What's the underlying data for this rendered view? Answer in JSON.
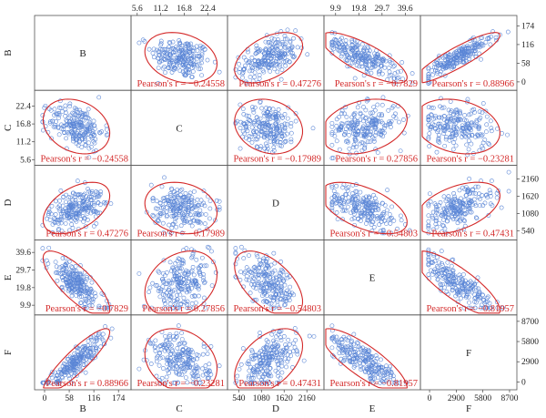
{
  "chart_data": {
    "type": "scatter-matrix",
    "variables": [
      "B",
      "C",
      "D",
      "E",
      "F"
    ],
    "axes": {
      "B": {
        "ticks": [
          "0",
          "58",
          "116",
          "174"
        ],
        "tick_values": [
          0,
          58,
          116,
          174
        ],
        "range": [
          -15,
          195
        ]
      },
      "C": {
        "ticks": [
          "5.6",
          "11.2",
          "16.8",
          "22.4"
        ],
        "tick_values": [
          5.6,
          11.2,
          16.8,
          22.4
        ],
        "range": [
          5.0,
          26.2
        ]
      },
      "D": {
        "ticks": [
          "540",
          "1080",
          "1620",
          "2160"
        ],
        "tick_values": [
          540,
          1080,
          1620,
          2160
        ],
        "range": [
          360,
          2480
        ]
      },
      "E": {
        "ticks": [
          "9.9",
          "19.8",
          "29.7",
          "39.6"
        ],
        "tick_values": [
          9.9,
          19.8,
          29.7,
          39.6
        ],
        "range": [
          6.5,
          44.5
        ]
      },
      "F": {
        "ticks": [
          "0",
          "2900",
          "5800",
          "8700"
        ],
        "tick_values": [
          0,
          2900,
          5800,
          8700
        ],
        "range": [
          -600,
          9100
        ]
      }
    },
    "variable_means": {
      "B": 75,
      "C": 16.0,
      "D": 1250,
      "E": 22,
      "F": 3000
    },
    "variable_sds": {
      "B": 32,
      "C": 3.5,
      "D": 330,
      "E": 7.5,
      "F": 1900
    },
    "correlations": [
      {
        "row": "B",
        "col": "C",
        "r": -0.24558,
        "label": "Pearson's r = −0.24558"
      },
      {
        "row": "B",
        "col": "D",
        "r": 0.47276,
        "label": "Pearson's r = 0.47276"
      },
      {
        "row": "B",
        "col": "E",
        "r": -0.7829,
        "label": "Pearson's r = −0.7829"
      },
      {
        "row": "B",
        "col": "F",
        "r": 0.88966,
        "label": "Pearson's r = 0.88966"
      },
      {
        "row": "C",
        "col": "B",
        "r": -0.24558,
        "label": "Pearson's r = −0.24558"
      },
      {
        "row": "C",
        "col": "D",
        "r": -0.17989,
        "label": "Pearson's r = −0.17989"
      },
      {
        "row": "C",
        "col": "E",
        "r": 0.27856,
        "label": "Pearson's r = 0.27856"
      },
      {
        "row": "C",
        "col": "F",
        "r": -0.23281,
        "label": "Pearson's r = −0.23281"
      },
      {
        "row": "D",
        "col": "B",
        "r": 0.47276,
        "label": "Pearson's r = 0.47276"
      },
      {
        "row": "D",
        "col": "C",
        "r": -0.17989,
        "label": "Pearson's r = −0.17989"
      },
      {
        "row": "D",
        "col": "E",
        "r": -0.54803,
        "label": "Pearson's r = −0.54803"
      },
      {
        "row": "D",
        "col": "F",
        "r": 0.47431,
        "label": "Pearson's r = 0.47431"
      },
      {
        "row": "E",
        "col": "B",
        "r": -0.7829,
        "label": "Pearson's r = −0.7829"
      },
      {
        "row": "E",
        "col": "C",
        "r": 0.27856,
        "label": "Pearson's r = 0.27856"
      },
      {
        "row": "E",
        "col": "D",
        "r": -0.54803,
        "label": "Pearson's r = −0.54803"
      },
      {
        "row": "E",
        "col": "F",
        "r": -0.81957,
        "label": "Pearson's r = −0.81957"
      },
      {
        "row": "F",
        "col": "B",
        "r": 0.88966,
        "label": "Pearson's r = 0.88966"
      },
      {
        "row": "F",
        "col": "C",
        "r": -0.23281,
        "label": "Pearson's r = −0.23281"
      },
      {
        "row": "F",
        "col": "D",
        "r": 0.47431,
        "label": "Pearson's r = 0.47431"
      },
      {
        "row": "F",
        "col": "E",
        "r": -0.81957,
        "label": "Pearson's r = −0.81957"
      }
    ],
    "grid": false,
    "marker": "open-circle",
    "ellipse": "confidence-ellipse",
    "colors": {
      "points": "#5b86d6",
      "ellipse": "#d42a2a",
      "correlation_text": "#d42a2a",
      "frame": "#555555"
    }
  }
}
